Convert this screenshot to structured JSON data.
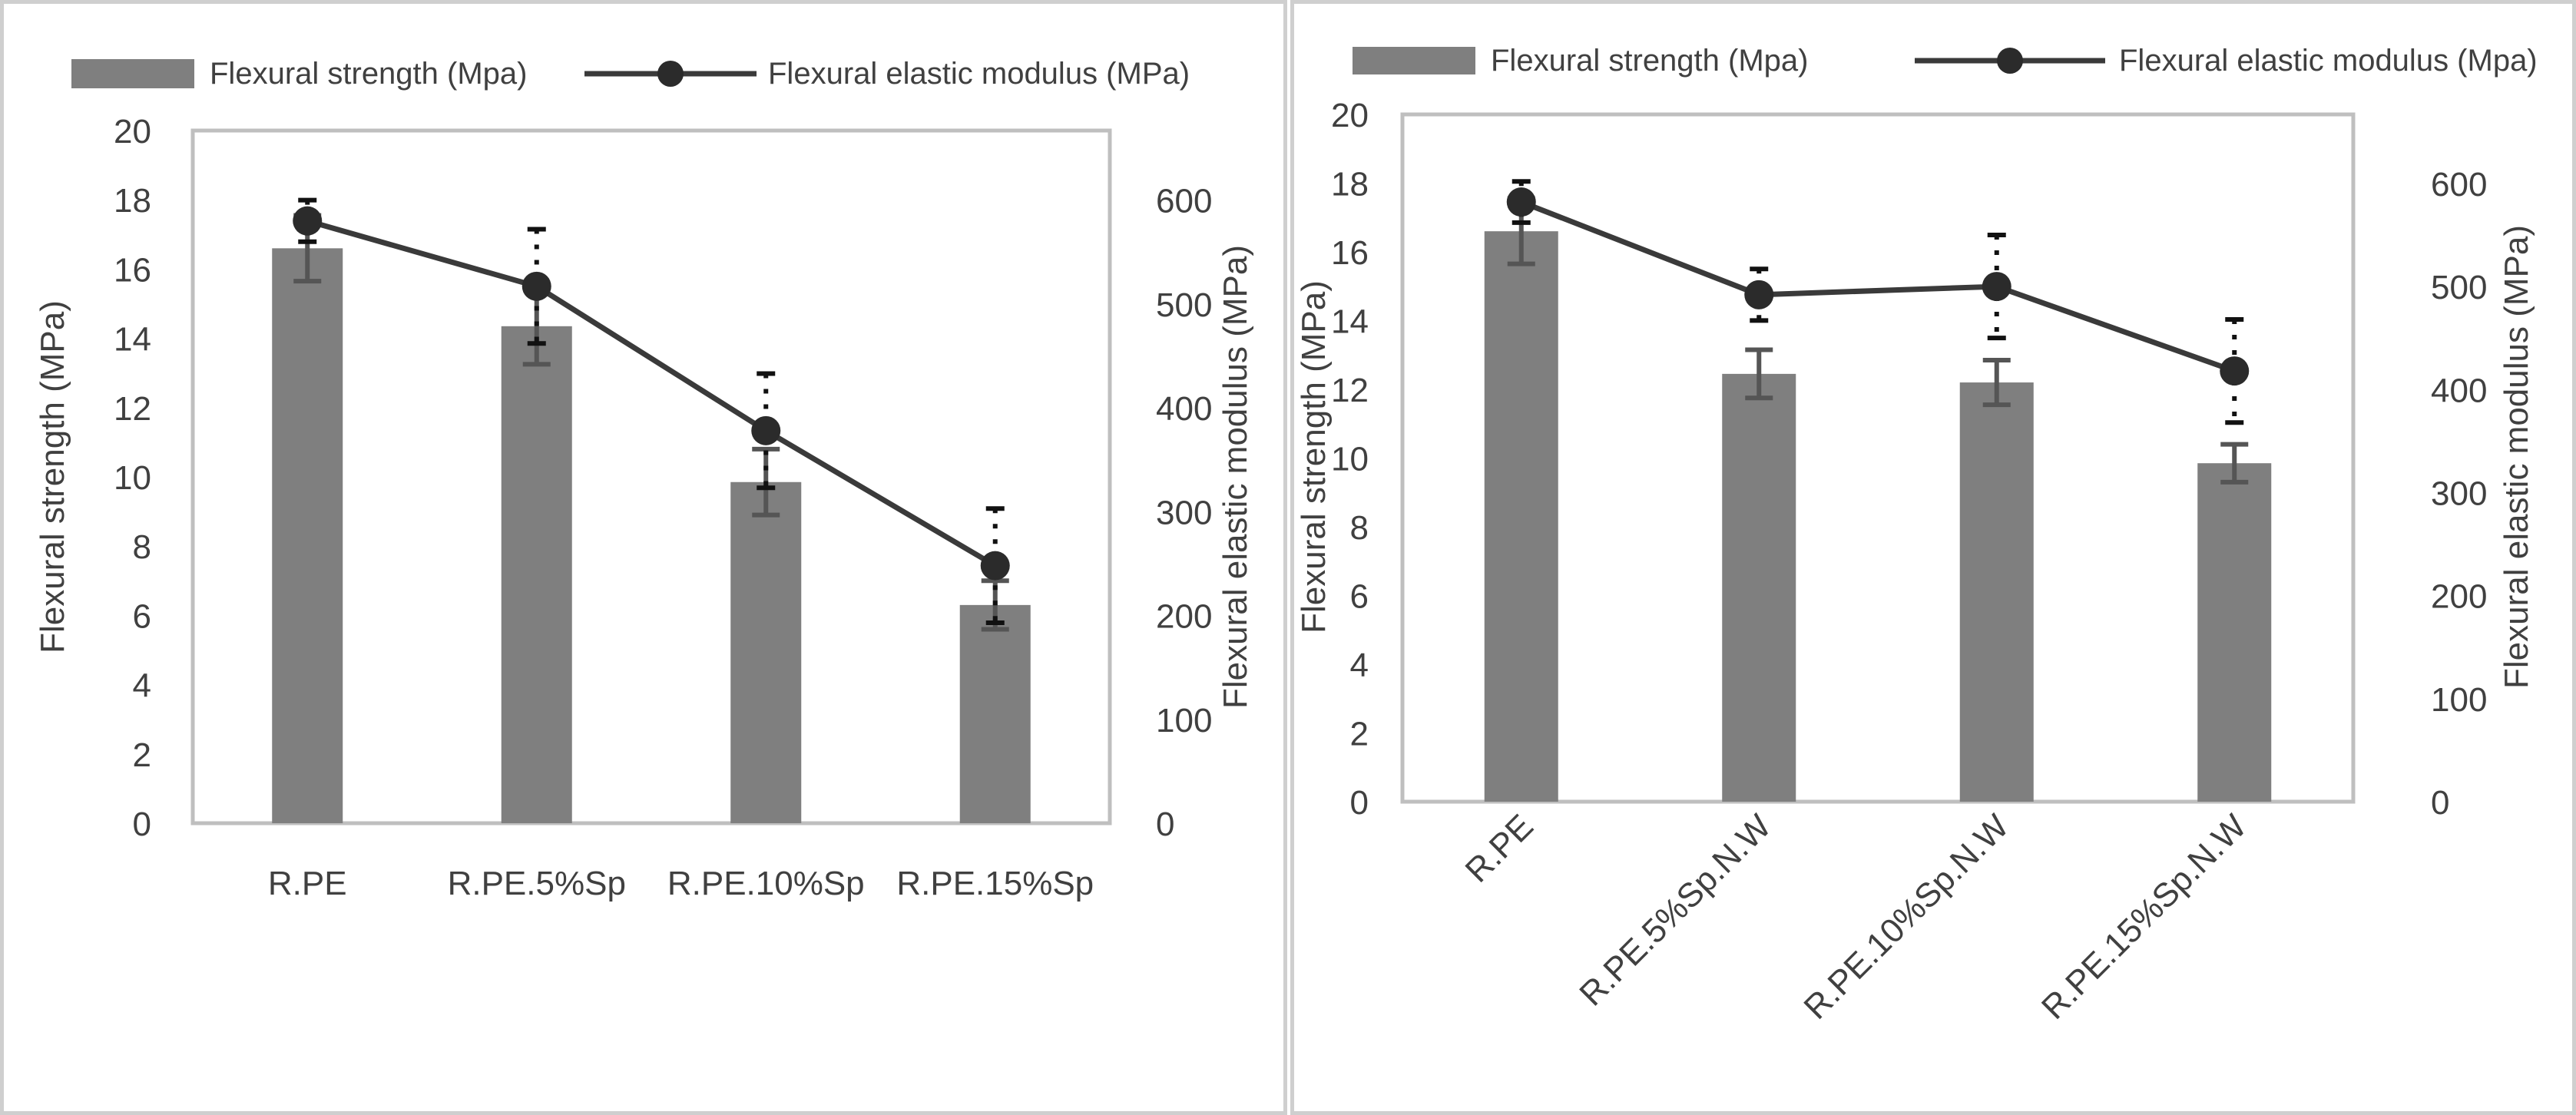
{
  "colors": {
    "bar": "#7f7f7f",
    "line": "#3a3a3a",
    "marker": "#2b2b2b",
    "axis": "#bfbfbf",
    "text": "#404040",
    "border": "#cfcfcf"
  },
  "chart_data": [
    {
      "type": "bar",
      "title": "",
      "legend": [
        {
          "label": "Flexural strength (Mpa)",
          "kind": "bar"
        },
        {
          "label": "Flexural elastic modulus (MPa)",
          "kind": "line"
        }
      ],
      "categories": [
        "R.PE",
        "R.PE.5%Sp",
        "R.PE.10%Sp",
        "R.PE.15%Sp"
      ],
      "ylabel": "Flexural strength (MPa)",
      "y2label": "Flexural elastic modulus (MPa)",
      "ylim": [
        0,
        20
      ],
      "y2lim": [
        0,
        667
      ],
      "yticks": [
        "0",
        "2",
        "4",
        "6",
        "8",
        "10",
        "12",
        "14",
        "16",
        "18",
        "20"
      ],
      "y2ticks": [
        "0",
        "100",
        "200",
        "300",
        "400",
        "500",
        "600"
      ],
      "x_tick_rotation": "horizontal",
      "series": [
        {
          "name": "Flexural strength (Mpa)",
          "kind": "bar",
          "values": [
            16.6,
            14.35,
            9.85,
            6.3
          ],
          "errors": [
            0.95,
            1.1,
            0.95,
            0.7
          ]
        },
        {
          "name": "Flexural elastic modulus (MPa)",
          "kind": "line",
          "values": [
            580,
            517,
            378,
            248
          ],
          "errors": [
            20,
            55,
            55,
            55
          ]
        }
      ]
    },
    {
      "type": "bar",
      "title": "",
      "legend": [
        {
          "label": "Flexural strength (Mpa)",
          "kind": "bar"
        },
        {
          "label": "Flexural elastic modulus (Mpa)",
          "kind": "line"
        }
      ],
      "categories": [
        "R.PE",
        "R.PE.5%Sp.N.W",
        "R.PE.10%Sp.N.W",
        "R.PE.15%Sp.N.W"
      ],
      "ylabel": "Flexural strength (MPa)",
      "y2label": "Flexural elastic modulus (MPa)",
      "ylim": [
        0,
        20
      ],
      "y2lim": [
        0,
        667
      ],
      "yticks": [
        "0",
        "2",
        "4",
        "6",
        "8",
        "10",
        "12",
        "14",
        "16",
        "18",
        "20"
      ],
      "y2ticks": [
        "0",
        "100",
        "200",
        "300",
        "400",
        "500",
        "600"
      ],
      "x_tick_rotation": "diagonal",
      "series": [
        {
          "name": "Flexural strength (Mpa)",
          "kind": "bar",
          "values": [
            16.6,
            12.45,
            12.2,
            9.85
          ],
          "errors": [
            0.95,
            0.7,
            0.65,
            0.55
          ]
        },
        {
          "name": "Flexural elastic modulus (Mpa)",
          "kind": "line",
          "values": [
            582,
            492,
            500,
            418
          ],
          "errors": [
            20,
            25,
            50,
            50
          ]
        }
      ]
    }
  ]
}
